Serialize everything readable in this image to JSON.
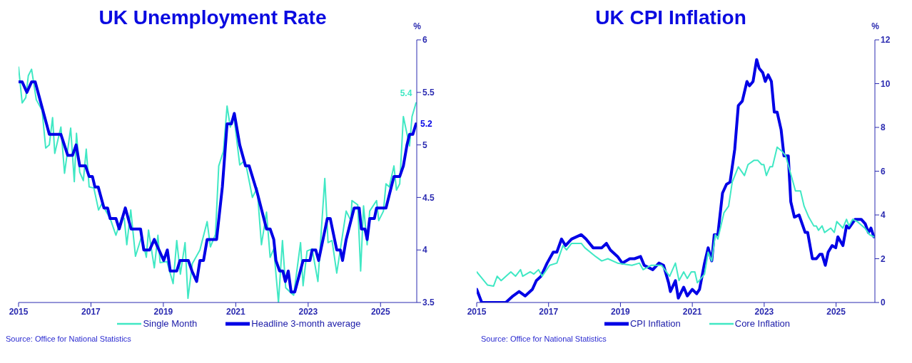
{
  "chart_data": [
    {
      "type": "line",
      "title": "UK Unemployment Rate",
      "ylabel": "%",
      "xlim": [
        2015,
        2026
      ],
      "xticks": [
        2015,
        2017,
        2019,
        2021,
        2023,
        2025
      ],
      "ylim": [
        3.5,
        6
      ],
      "yticks": [
        3.5,
        4,
        4.5,
        5,
        5.5,
        6
      ],
      "legend": "bottom",
      "annotations": [
        "Source: Office for National Statistics",
        {
          "text": "5.4",
          "x": 2025.98,
          "y": 5.4
        },
        {
          "text": "5.2",
          "x": 2025.98,
          "y": 5.2
        }
      ],
      "series": [
        {
          "name": "Single Month",
          "color": "#40e8c4",
          "x": [
            2015.0,
            2015.1,
            2015.2,
            2015.27,
            2015.36,
            2015.49,
            2015.65,
            2015.75,
            2015.85,
            2015.94,
            2016.0,
            2016.17,
            2016.27,
            2016.44,
            2016.54,
            2016.6,
            2016.69,
            2016.79,
            2016.87,
            2016.95,
            2017.08,
            2017.21,
            2017.3,
            2017.53,
            2017.69,
            2017.85,
            2017.92,
            2017.99,
            2018.1,
            2018.23,
            2018.4,
            2018.53,
            2018.59,
            2018.75,
            2018.85,
            2018.91,
            2019.1,
            2019.27,
            2019.37,
            2019.47,
            2019.6,
            2019.68,
            2019.8,
            2020.01,
            2020.21,
            2020.3,
            2020.44,
            2020.53,
            2020.66,
            2020.76,
            2020.85,
            2020.95,
            2021.11,
            2021.21,
            2021.3,
            2021.46,
            2021.59,
            2021.71,
            2021.85,
            2021.95,
            2022.05,
            2022.18,
            2022.29,
            2022.38,
            2022.5,
            2022.6,
            2022.79,
            2022.86,
            2022.97,
            2023.11,
            2023.27,
            2023.46,
            2023.55,
            2023.66,
            2023.79,
            2024.05,
            2024.18,
            2024.21,
            2024.37,
            2024.45,
            2024.53,
            2024.63,
            2024.7,
            2024.89,
            2024.95,
            2025.08,
            2025.15,
            2025.24,
            2025.37,
            2025.44,
            2025.53,
            2025.63,
            2025.8,
            2025.87,
            2025.98
          ],
          "values": [
            5.74,
            5.4,
            5.45,
            5.66,
            5.72,
            5.43,
            5.33,
            4.97,
            5.0,
            5.26,
            4.92,
            5.17,
            4.73,
            5.16,
            4.65,
            5.11,
            4.74,
            4.66,
            4.96,
            4.6,
            4.59,
            4.38,
            4.44,
            4.3,
            4.14,
            4.31,
            4.3,
            4.05,
            4.38,
            3.94,
            4.13,
            3.93,
            4.19,
            3.83,
            4.14,
            3.88,
            3.89,
            3.68,
            4.09,
            3.77,
            4.07,
            3.54,
            3.87,
            4.0,
            4.27,
            4.03,
            4.15,
            4.8,
            4.94,
            5.37,
            5.17,
            5.27,
            4.81,
            4.84,
            4.78,
            4.5,
            4.59,
            4.05,
            4.36,
            3.93,
            4.01,
            3.5,
            4.09,
            3.64,
            3.6,
            3.57,
            4.07,
            3.66,
            3.99,
            4.01,
            3.7,
            4.68,
            4.07,
            4.09,
            3.78,
            4.37,
            4.28,
            4.47,
            4.43,
            3.8,
            4.42,
            4.05,
            4.37,
            4.47,
            4.28,
            4.37,
            4.63,
            4.6,
            4.8,
            4.57,
            4.63,
            5.27,
            4.99,
            5.27,
            5.4
          ]
        },
        {
          "name": "Headline 3-month average",
          "color": "#0000e6",
          "x": [
            2015.0,
            2015.1,
            2015.23,
            2015.36,
            2015.46,
            2015.85,
            2016.17,
            2016.36,
            2016.49,
            2016.59,
            2016.69,
            2016.85,
            2016.95,
            2017.04,
            2017.11,
            2017.2,
            2017.36,
            2017.46,
            2017.53,
            2017.69,
            2017.78,
            2017.95,
            2018.11,
            2018.37,
            2018.46,
            2018.62,
            2018.75,
            2018.88,
            2019.01,
            2019.11,
            2019.19,
            2019.37,
            2019.46,
            2019.69,
            2019.79,
            2019.92,
            2020.01,
            2020.11,
            2020.21,
            2020.47,
            2020.63,
            2020.76,
            2020.88,
            2020.96,
            2021.11,
            2021.27,
            2021.37,
            2021.59,
            2021.85,
            2021.95,
            2022.05,
            2022.11,
            2022.21,
            2022.3,
            2022.37,
            2022.45,
            2022.53,
            2022.63,
            2022.86,
            2023.05,
            2023.11,
            2023.21,
            2023.29,
            2023.53,
            2023.61,
            2023.73,
            2023.79,
            2023.89,
            2023.95,
            2024.05,
            2024.27,
            2024.41,
            2024.47,
            2024.57,
            2024.63,
            2024.7,
            2024.83,
            2024.89,
            2025.15,
            2025.37,
            2025.53,
            2025.63,
            2025.73,
            2025.8,
            2025.89,
            2025.98
          ],
          "values": [
            5.6,
            5.6,
            5.5,
            5.6,
            5.6,
            5.1,
            5.1,
            4.9,
            4.9,
            5.0,
            4.8,
            4.8,
            4.7,
            4.7,
            4.6,
            4.6,
            4.4,
            4.4,
            4.3,
            4.3,
            4.2,
            4.4,
            4.2,
            4.2,
            4.0,
            4.0,
            4.1,
            4.0,
            3.9,
            4.0,
            3.8,
            3.8,
            3.9,
            3.9,
            3.8,
            3.7,
            3.9,
            3.9,
            4.1,
            4.1,
            4.6,
            5.2,
            5.2,
            5.3,
            5.0,
            4.8,
            4.8,
            4.55,
            4.2,
            4.2,
            4.1,
            3.9,
            3.8,
            3.8,
            3.7,
            3.8,
            3.6,
            3.6,
            3.9,
            3.9,
            4.0,
            4.0,
            3.9,
            4.3,
            4.3,
            4.1,
            4.0,
            4.0,
            3.9,
            4.1,
            4.4,
            4.4,
            4.2,
            4.2,
            4.1,
            4.3,
            4.3,
            4.4,
            4.4,
            4.7,
            4.7,
            4.8,
            5.0,
            5.1,
            5.1,
            5.2
          ]
        }
      ]
    },
    {
      "type": "line",
      "title": "UK CPI Inflation",
      "ylabel": "%",
      "xlim": [
        2015,
        2026.08
      ],
      "xticks": [
        2015,
        2017,
        2019,
        2021,
        2023,
        2025
      ],
      "ylim": [
        0,
        12
      ],
      "yticks": [
        0,
        2,
        4,
        6,
        8,
        10,
        12
      ],
      "legend": "bottom",
      "annotations": [
        "Source: Office for National Statistics"
      ],
      "series": [
        {
          "name": "CPI Inflation",
          "color": "#0000e6",
          "x": [
            2015.0,
            2015.14,
            2015.37,
            2015.81,
            2016.01,
            2016.18,
            2016.35,
            2016.55,
            2016.66,
            2016.79,
            2016.96,
            2017.13,
            2017.23,
            2017.36,
            2017.47,
            2017.64,
            2017.91,
            2018.04,
            2018.24,
            2018.48,
            2018.61,
            2018.72,
            2018.92,
            2019.05,
            2019.26,
            2019.39,
            2019.56,
            2019.66,
            2019.9,
            2020.07,
            2020.2,
            2020.34,
            2020.39,
            2020.53,
            2020.61,
            2020.76,
            2020.86,
            2021.0,
            2021.12,
            2021.2,
            2021.34,
            2021.44,
            2021.54,
            2021.61,
            2021.71,
            2021.84,
            2021.95,
            2022.05,
            2022.18,
            2022.28,
            2022.39,
            2022.52,
            2022.59,
            2022.69,
            2022.79,
            2022.86,
            2022.96,
            2023.03,
            2023.11,
            2023.2,
            2023.28,
            2023.36,
            2023.47,
            2023.55,
            2023.67,
            2023.74,
            2023.84,
            2023.97,
            2024.14,
            2024.21,
            2024.34,
            2024.45,
            2024.55,
            2024.61,
            2024.7,
            2024.78,
            2024.89,
            2024.99,
            2025.05,
            2025.19,
            2025.29,
            2025.36,
            2025.53,
            2025.7,
            2025.81,
            2025.9,
            2025.97,
            2026.05
          ],
          "values": [
            0.6,
            0.0,
            0.0,
            0.0,
            0.3,
            0.5,
            0.3,
            0.6,
            1.0,
            1.2,
            1.8,
            2.3,
            2.3,
            2.9,
            2.6,
            2.9,
            3.1,
            2.9,
            2.5,
            2.5,
            2.7,
            2.4,
            2.1,
            1.8,
            2.0,
            2.0,
            2.1,
            1.7,
            1.5,
            1.8,
            1.7,
            0.9,
            0.5,
            1.0,
            0.2,
            0.7,
            0.3,
            0.6,
            0.4,
            0.6,
            1.8,
            2.5,
            1.9,
            3.1,
            3.1,
            5.0,
            5.4,
            5.5,
            7.0,
            9.0,
            9.2,
            10.1,
            9.9,
            10.1,
            11.1,
            10.7,
            10.5,
            10.1,
            10.4,
            10.1,
            8.7,
            8.7,
            7.9,
            6.7,
            6.7,
            4.6,
            3.9,
            4.0,
            3.2,
            3.2,
            2.0,
            2.0,
            2.2,
            2.2,
            1.7,
            2.3,
            2.6,
            2.5,
            3.0,
            2.6,
            3.5,
            3.4,
            3.8,
            3.8,
            3.6,
            3.2,
            3.4,
            3.0
          ]
        },
        {
          "name": "Core Inflation",
          "color": "#40e8c4",
          "x": [
            2015.0,
            2015.3,
            2015.47,
            2015.57,
            2015.68,
            2015.95,
            2016.08,
            2016.22,
            2016.28,
            2016.49,
            2016.59,
            2016.72,
            2016.82,
            2017.03,
            2017.23,
            2017.4,
            2017.5,
            2017.64,
            2017.91,
            2018.01,
            2018.31,
            2018.48,
            2018.65,
            2018.92,
            2019.32,
            2019.53,
            2019.63,
            2019.86,
            2020.14,
            2020.37,
            2020.53,
            2020.63,
            2020.76,
            2020.86,
            2020.97,
            2021.07,
            2021.14,
            2021.34,
            2021.44,
            2021.54,
            2021.64,
            2021.71,
            2021.88,
            2022.01,
            2022.11,
            2022.28,
            2022.45,
            2022.55,
            2022.72,
            2022.82,
            2022.93,
            2022.99,
            2023.06,
            2023.16,
            2023.23,
            2023.36,
            2023.5,
            2023.6,
            2023.7,
            2023.87,
            2024.01,
            2024.11,
            2024.24,
            2024.38,
            2024.45,
            2024.51,
            2024.61,
            2024.68,
            2024.85,
            2024.95,
            2025.02,
            2025.19,
            2025.29,
            2025.36,
            2025.46,
            2025.59,
            2025.8,
            2025.93,
            2026.05
          ],
          "values": [
            1.4,
            0.8,
            0.75,
            1.2,
            1.0,
            1.4,
            1.2,
            1.5,
            1.2,
            1.4,
            1.3,
            1.5,
            1.2,
            1.7,
            1.8,
            2.6,
            2.4,
            2.7,
            2.7,
            2.5,
            2.1,
            1.9,
            2.0,
            1.8,
            1.7,
            1.8,
            1.5,
            1.7,
            1.7,
            1.2,
            1.8,
            1.0,
            1.4,
            1.1,
            1.4,
            1.4,
            0.9,
            1.3,
            2.3,
            1.9,
            3.1,
            2.9,
            4.1,
            4.4,
            5.5,
            6.2,
            5.8,
            6.3,
            6.5,
            6.5,
            6.3,
            6.3,
            5.8,
            6.2,
            6.2,
            7.1,
            6.9,
            6.7,
            6.1,
            5.1,
            5.1,
            4.4,
            3.9,
            3.5,
            3.5,
            3.3,
            3.5,
            3.2,
            3.4,
            3.2,
            3.7,
            3.4,
            3.8,
            3.5,
            3.8,
            3.7,
            3.4,
            3.1,
            3.0
          ]
        }
      ]
    }
  ]
}
